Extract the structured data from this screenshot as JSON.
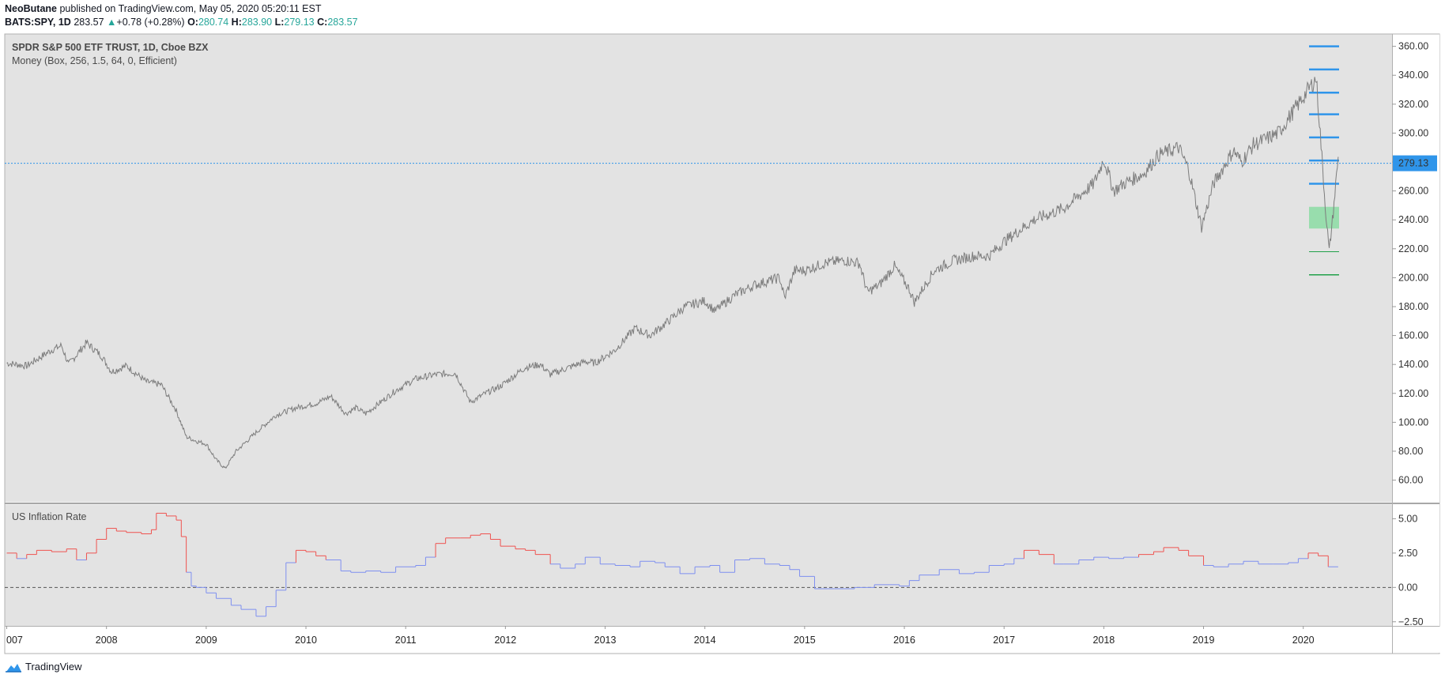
{
  "header": {
    "author": "NeoButane",
    "published_text": "published on TradingView.com, May 05, 2020 05:20:11 EST",
    "symbol": "BATS:SPY, 1D",
    "last": "283.57",
    "change_arrow": "▲",
    "change": "+0.78 (+0.28%)",
    "o_label": "O:",
    "o": "280.74",
    "h_label": "H:",
    "h": "283.90",
    "l_label": "L:",
    "l": "279.13",
    "c_label": "C:",
    "c": "283.57"
  },
  "footer": {
    "brand": "TradingView"
  },
  "colors": {
    "pane_bg": "#e3e3e3",
    "price_line": "#7d7d7d",
    "level_blue": "#2f95ea",
    "level_green": "#21a04a",
    "box_fill": "#8fdca6",
    "infl_hot": "#ef5350",
    "infl_cool": "#7e8ff0",
    "label_bg": "#2f95ea"
  },
  "chart_data": [
    {
      "type": "line",
      "title": "SPDR S&P 500 ETF TRUST, 1D, Cboe BZX",
      "subtitle": "Money (Box, 256, 1.5, 64, 0, Efficient)",
      "ylim": [
        45,
        368
      ],
      "yticks": [
        "360.00",
        "340.00",
        "320.00",
        "300.00",
        "280.00",
        "260.00",
        "240.00",
        "220.00",
        "200.00",
        "180.00",
        "160.00",
        "140.00",
        "120.00",
        "100.00",
        "80.00",
        "60.00"
      ],
      "xlim": [
        2006.98,
        2020.89
      ],
      "xticks": [
        "007",
        "2008",
        "2009",
        "2010",
        "2011",
        "2012",
        "2013",
        "2014",
        "2015",
        "2016",
        "2017",
        "2018",
        "2019",
        "2020"
      ],
      "current_price_label": "279.13",
      "current_price": 279.13,
      "series": [
        {
          "name": "SPY",
          "x": [
            2007.0,
            2007.2,
            2007.45,
            2007.55,
            2007.62,
            2007.8,
            2007.95,
            2008.05,
            2008.2,
            2008.4,
            2008.55,
            2008.7,
            2008.8,
            2008.9,
            2009.0,
            2009.1,
            2009.19,
            2009.3,
            2009.5,
            2009.7,
            2009.9,
            2010.1,
            2010.25,
            2010.4,
            2010.5,
            2010.6,
            2010.75,
            2010.9,
            2011.1,
            2011.3,
            2011.5,
            2011.58,
            2011.65,
            2011.8,
            2011.95,
            2012.2,
            2012.35,
            2012.45,
            2012.6,
            2012.8,
            2012.9,
            2013.1,
            2013.3,
            2013.45,
            2013.6,
            2013.8,
            2014.0,
            2014.1,
            2014.3,
            2014.5,
            2014.75,
            2014.8,
            2014.9,
            2015.0,
            2015.2,
            2015.4,
            2015.55,
            2015.63,
            2015.75,
            2015.9,
            2016.05,
            2016.1,
            2016.3,
            2016.5,
            2016.7,
            2016.85,
            2017.0,
            2017.3,
            2017.6,
            2017.9,
            2018.0,
            2018.1,
            2018.2,
            2018.4,
            2018.55,
            2018.75,
            2018.85,
            2018.98,
            2019.1,
            2019.3,
            2019.38,
            2019.5,
            2019.6,
            2019.75,
            2019.9,
            2020.05,
            2020.13,
            2020.17,
            2020.22,
            2020.26,
            2020.3,
            2020.35
          ],
          "y": [
            141,
            139,
            150,
            153,
            140,
            155,
            146,
            135,
            139,
            128,
            126,
            108,
            90,
            87,
            85,
            74,
            68,
            80,
            93,
            105,
            110,
            113,
            118,
            106,
            110,
            106,
            114,
            122,
            130,
            133,
            134,
            123,
            114,
            120,
            125,
            138,
            140,
            133,
            137,
            142,
            141,
            150,
            165,
            160,
            168,
            180,
            184,
            177,
            188,
            195,
            200,
            186,
            205,
            205,
            210,
            212,
            210,
            190,
            195,
            208,
            192,
            183,
            205,
            212,
            215,
            215,
            225,
            240,
            248,
            265,
            282,
            260,
            265,
            272,
            285,
            290,
            275,
            235,
            265,
            288,
            280,
            292,
            295,
            300,
            315,
            330,
            338,
            300,
            250,
            218,
            245,
            283.57
          ]
        }
      ],
      "levels_blue": [
        360,
        344,
        328,
        313,
        297,
        281,
        265
      ],
      "levels_green": [
        218,
        202
      ],
      "box_range": [
        234,
        249
      ]
    },
    {
      "type": "line",
      "title": "US Inflation Rate",
      "ylim": [
        -2.8,
        6.0
      ],
      "yticks": [
        "5.00",
        "2.50",
        "0.00",
        "−2.50"
      ],
      "zero_line": 0,
      "series": [
        {
          "name": "US Inflation Rate",
          "step": true,
          "threshold_hot": 2.3,
          "x": [
            2007.0,
            2007.1,
            2007.2,
            2007.3,
            2007.45,
            2007.6,
            2007.7,
            2007.8,
            2007.9,
            2008.0,
            2008.1,
            2008.2,
            2008.35,
            2008.45,
            2008.5,
            2008.6,
            2008.7,
            2008.75,
            2008.8,
            2008.85,
            2008.9,
            2009.0,
            2009.1,
            2009.25,
            2009.35,
            2009.5,
            2009.6,
            2009.7,
            2009.8,
            2009.9,
            2010.0,
            2010.1,
            2010.2,
            2010.35,
            2010.45,
            2010.6,
            2010.75,
            2010.9,
            2011.1,
            2011.2,
            2011.3,
            2011.4,
            2011.55,
            2011.65,
            2011.75,
            2011.85,
            2011.95,
            2012.1,
            2012.2,
            2012.3,
            2012.45,
            2012.55,
            2012.7,
            2012.8,
            2012.95,
            2013.1,
            2013.25,
            2013.35,
            2013.5,
            2013.6,
            2013.75,
            2013.9,
            2014.05,
            2014.15,
            2014.3,
            2014.45,
            2014.6,
            2014.75,
            2014.85,
            2014.95,
            2015.1,
            2015.3,
            2015.5,
            2015.7,
            2015.85,
            2015.95,
            2016.05,
            2016.15,
            2016.35,
            2016.55,
            2016.7,
            2016.85,
            2017.0,
            2017.1,
            2017.2,
            2017.35,
            2017.5,
            2017.6,
            2017.75,
            2017.9,
            2018.05,
            2018.2,
            2018.35,
            2018.5,
            2018.6,
            2018.75,
            2018.85,
            2019.0,
            2019.1,
            2019.25,
            2019.4,
            2019.55,
            2019.7,
            2019.85,
            2019.95,
            2020.05,
            2020.15,
            2020.25
          ],
          "y": [
            2.5,
            2.1,
            2.4,
            2.7,
            2.6,
            2.8,
            2.0,
            2.5,
            3.5,
            4.3,
            4.1,
            4.0,
            3.9,
            4.2,
            5.4,
            5.2,
            4.9,
            3.7,
            1.1,
            0.1,
            0.0,
            -0.4,
            -0.8,
            -1.3,
            -1.6,
            -2.1,
            -1.4,
            -0.2,
            1.8,
            2.7,
            2.6,
            2.3,
            2.0,
            1.2,
            1.1,
            1.2,
            1.1,
            1.5,
            1.6,
            2.2,
            3.2,
            3.6,
            3.6,
            3.8,
            3.9,
            3.5,
            3.0,
            2.8,
            2.7,
            2.4,
            1.7,
            1.4,
            1.7,
            2.2,
            1.7,
            1.6,
            1.5,
            1.9,
            1.8,
            1.5,
            1.0,
            1.5,
            1.6,
            1.1,
            2.0,
            2.1,
            1.7,
            1.6,
            1.3,
            0.8,
            -0.1,
            -0.1,
            0.0,
            0.2,
            0.2,
            0.1,
            0.5,
            0.9,
            1.3,
            1.0,
            1.1,
            1.6,
            1.7,
            2.1,
            2.7,
            2.4,
            1.7,
            1.7,
            2.0,
            2.2,
            2.1,
            2.2,
            2.4,
            2.6,
            2.9,
            2.7,
            2.3,
            1.6,
            1.5,
            1.7,
            1.9,
            1.7,
            1.7,
            1.8,
            2.1,
            2.5,
            2.3,
            1.5
          ]
        }
      ]
    }
  ]
}
